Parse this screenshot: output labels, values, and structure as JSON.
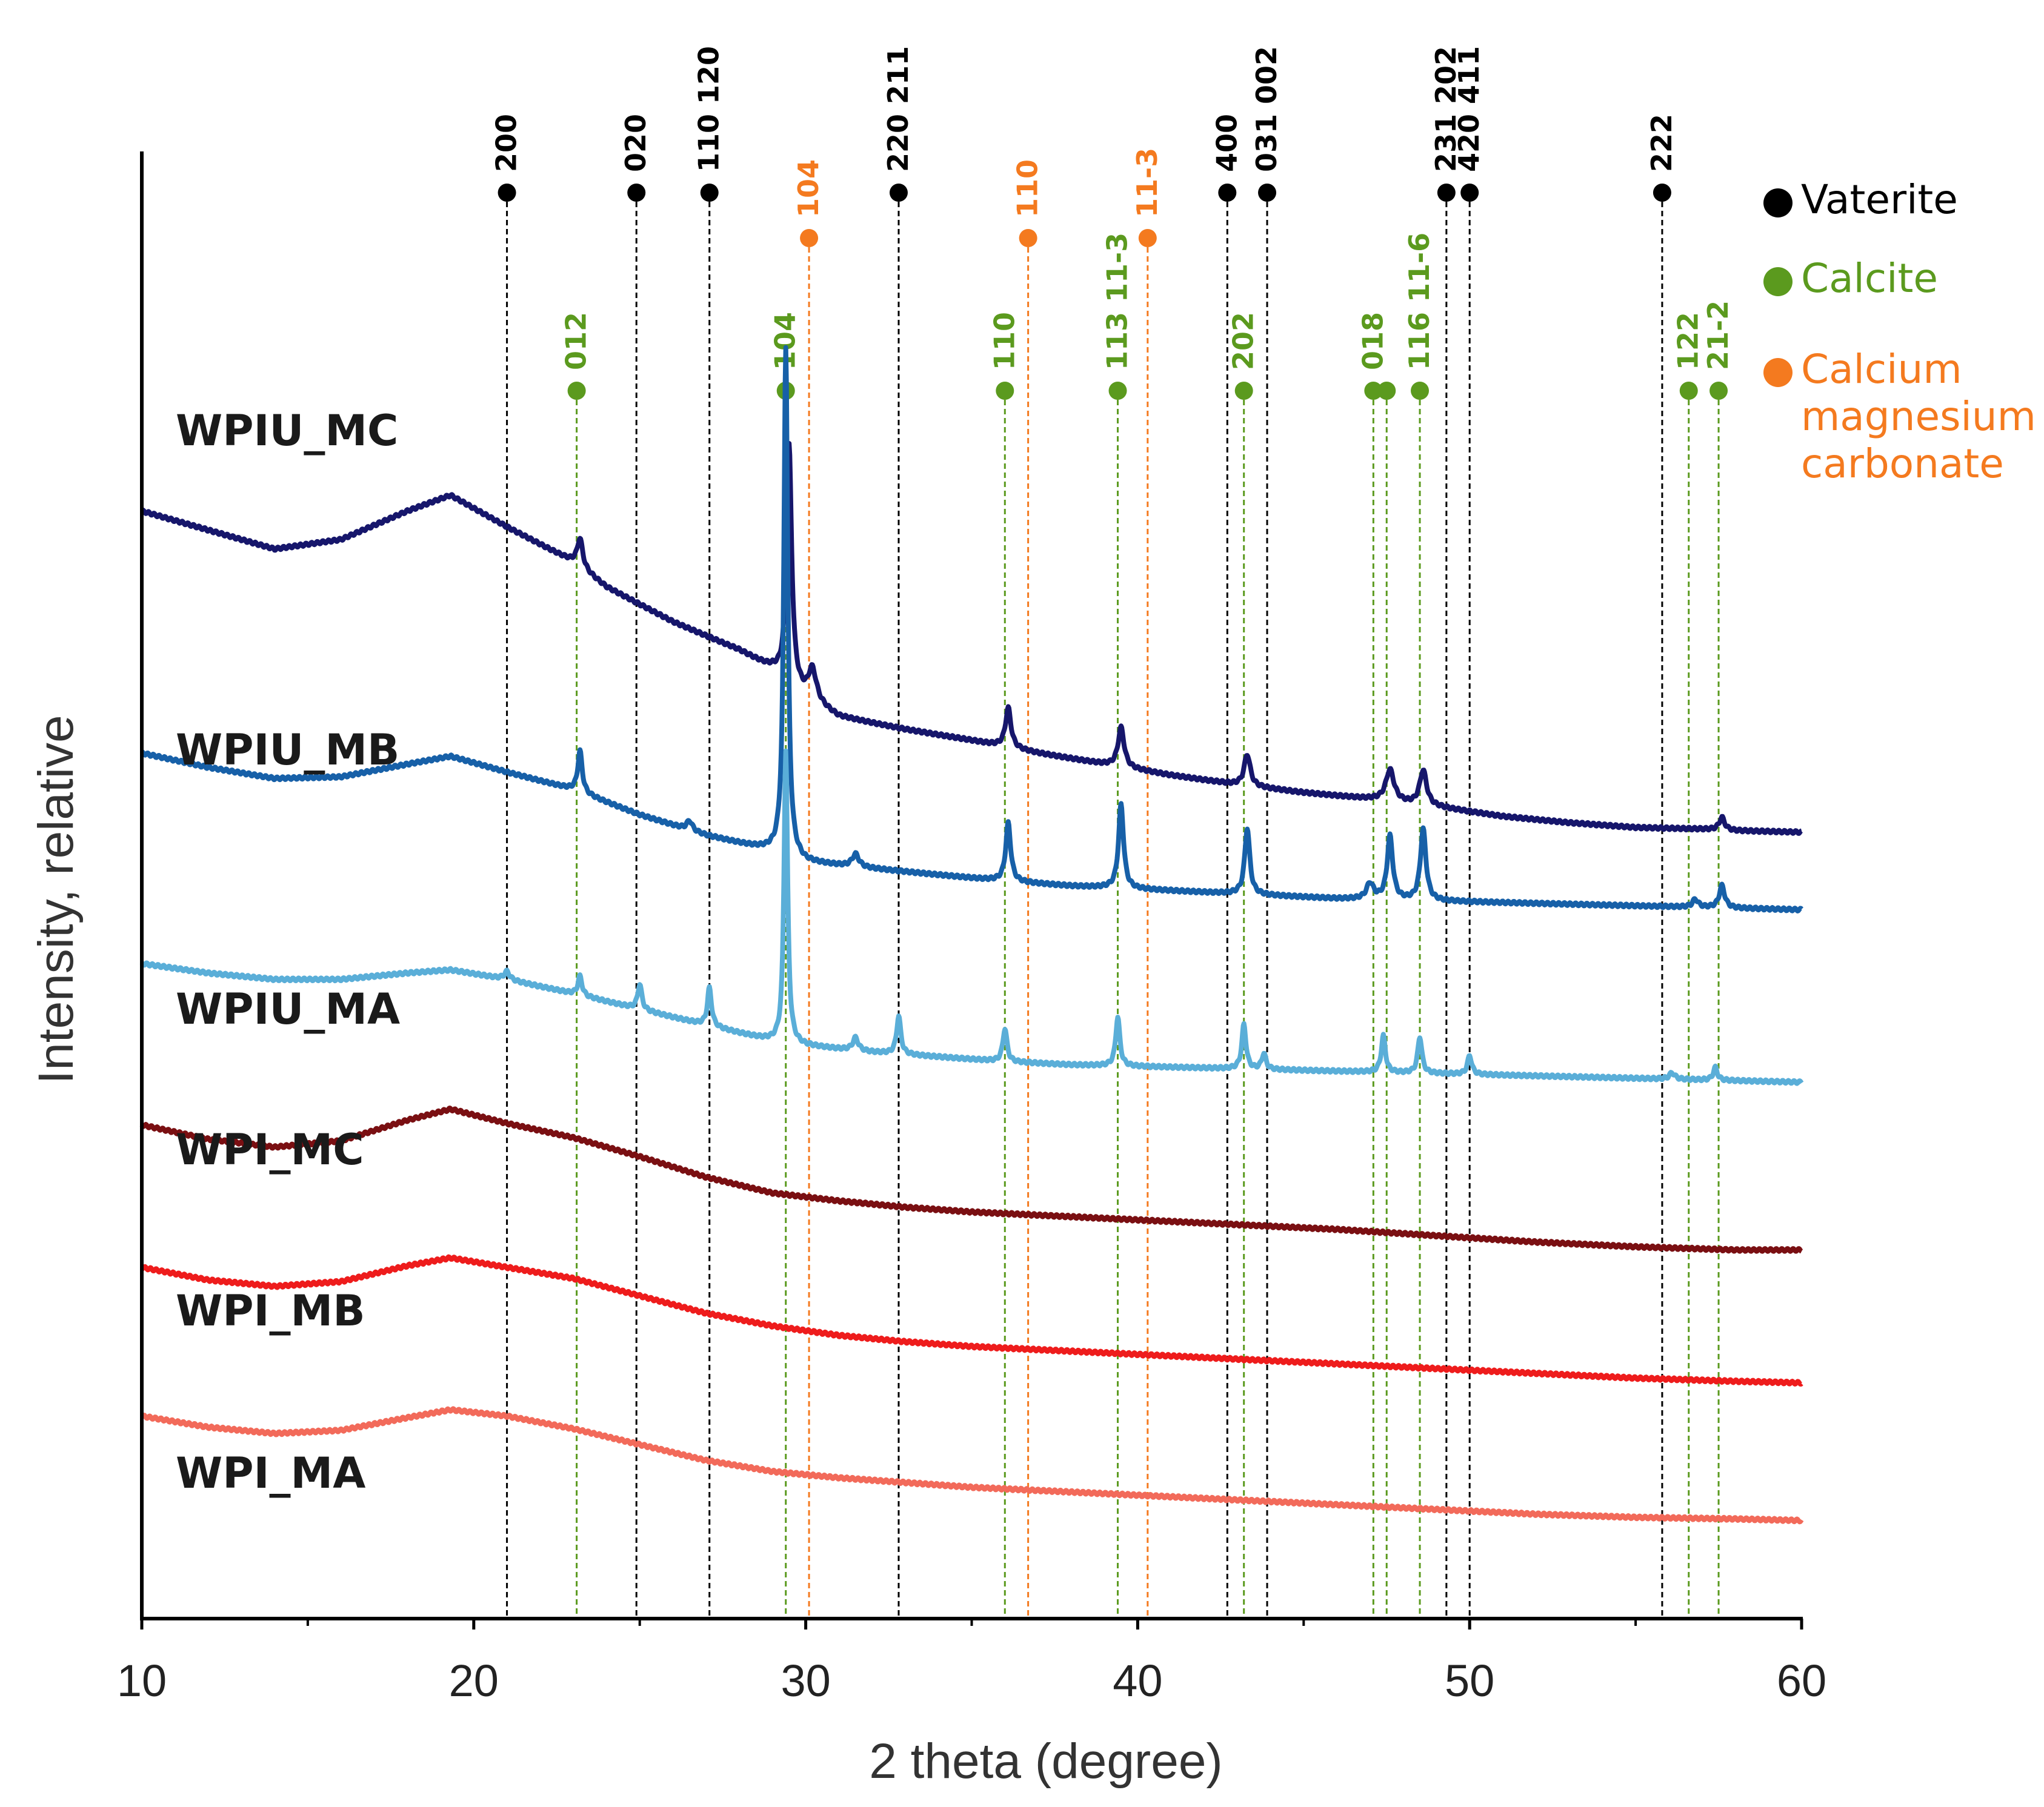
{
  "chart_data": {
    "type": "line",
    "title": "",
    "xlabel": "2 theta (degree)",
    "ylabel": "Intensity, relative",
    "xlim": [
      10,
      60
    ],
    "xticks": [
      10,
      20,
      30,
      40,
      50,
      60
    ],
    "grid": false,
    "legend_position": "top-right",
    "phases": [
      {
        "name": "Vaterite",
        "color": "#000000"
      },
      {
        "name": "Calcite",
        "color": "#5b9a1e"
      },
      {
        "name": "Calcium magnesium carbonate",
        "lines": [
          "Calcium",
          "magnesium",
          "carbonate"
        ],
        "color": "#f47a1f"
      }
    ],
    "series": [
      {
        "name": "WPIU_MC",
        "color": "#16166b",
        "points": [
          [
            10,
            0.7
          ],
          [
            12,
            0.688
          ],
          [
            14,
            0.676
          ],
          [
            16,
            0.682
          ],
          [
            18,
            0.7
          ],
          [
            19.3,
            0.71
          ],
          [
            21,
            0.69
          ],
          [
            23,
            0.668
          ],
          [
            24,
            0.652
          ],
          [
            26,
            0.63
          ],
          [
            28,
            0.612
          ],
          [
            29,
            0.6
          ],
          [
            30,
            0.582
          ],
          [
            31,
            0.57
          ],
          [
            33,
            0.562
          ],
          [
            35,
            0.555
          ],
          [
            37,
            0.547
          ],
          [
            39,
            0.54
          ],
          [
            41,
            0.533
          ],
          [
            43,
            0.527
          ],
          [
            45,
            0.522
          ],
          [
            47,
            0.518
          ],
          [
            49,
            0.513
          ],
          [
            51,
            0.507
          ],
          [
            53,
            0.503
          ],
          [
            55,
            0.5
          ],
          [
            57,
            0.499
          ],
          [
            58,
            0.498
          ],
          [
            60,
            0.497
          ]
        ],
        "peaks": [
          [
            23.2,
            0.018,
            0.2
          ],
          [
            29.5,
            0.15,
            0.18
          ],
          [
            30.2,
            0.02,
            0.3
          ],
          [
            36.1,
            0.025,
            0.2
          ],
          [
            39.5,
            0.025,
            0.22
          ],
          [
            43.3,
            0.02,
            0.22
          ],
          [
            47.6,
            0.02,
            0.3
          ],
          [
            48.6,
            0.022,
            0.25
          ],
          [
            57.6,
            0.008,
            0.2
          ]
        ]
      },
      {
        "name": "WPIU_MB",
        "color": "#1760a8",
        "points": [
          [
            10,
            0.547
          ],
          [
            12,
            0.538
          ],
          [
            14,
            0.531
          ],
          [
            16,
            0.532
          ],
          [
            18,
            0.54
          ],
          [
            19.3,
            0.545
          ],
          [
            21,
            0.535
          ],
          [
            23,
            0.524
          ],
          [
            25,
            0.508
          ],
          [
            27,
            0.495
          ],
          [
            29,
            0.485
          ],
          [
            30,
            0.478
          ],
          [
            32,
            0.474
          ],
          [
            34,
            0.47
          ],
          [
            36,
            0.466
          ],
          [
            38,
            0.463
          ],
          [
            40,
            0.461
          ],
          [
            42,
            0.459
          ],
          [
            44,
            0.457
          ],
          [
            46,
            0.455
          ],
          [
            48,
            0.454
          ],
          [
            50,
            0.453
          ],
          [
            52,
            0.452
          ],
          [
            54,
            0.451
          ],
          [
            56,
            0.45
          ],
          [
            58,
            0.449
          ],
          [
            60,
            0.448
          ]
        ],
        "peaks": [
          [
            23.2,
            0.026,
            0.16
          ],
          [
            26.5,
            0.006,
            0.2
          ],
          [
            29.4,
            0.322,
            0.14
          ],
          [
            31.5,
            0.008,
            0.25
          ],
          [
            36.1,
            0.037,
            0.18
          ],
          [
            39.5,
            0.053,
            0.18
          ],
          [
            43.3,
            0.042,
            0.18
          ],
          [
            47.0,
            0.01,
            0.25
          ],
          [
            47.6,
            0.04,
            0.2
          ],
          [
            48.6,
            0.045,
            0.2
          ],
          [
            56.8,
            0.005,
            0.2
          ],
          [
            57.6,
            0.014,
            0.2
          ]
        ]
      },
      {
        "name": "WPIU_MA",
        "color": "#5aaed8",
        "points": [
          [
            10,
            0.414
          ],
          [
            12,
            0.408
          ],
          [
            14,
            0.404
          ],
          [
            16,
            0.404
          ],
          [
            18,
            0.408
          ],
          [
            19.3,
            0.41
          ],
          [
            21,
            0.404
          ],
          [
            23,
            0.395
          ],
          [
            25,
            0.385
          ],
          [
            27,
            0.375
          ],
          [
            29,
            0.365
          ],
          [
            30,
            0.362
          ],
          [
            32,
            0.358
          ],
          [
            34,
            0.355
          ],
          [
            36,
            0.352
          ],
          [
            38,
            0.35
          ],
          [
            40,
            0.349
          ],
          [
            42,
            0.348
          ],
          [
            44,
            0.347
          ],
          [
            46,
            0.346
          ],
          [
            48,
            0.345
          ],
          [
            50,
            0.344
          ],
          [
            52,
            0.343
          ],
          [
            54,
            0.342
          ],
          [
            56,
            0.341
          ],
          [
            58,
            0.34
          ],
          [
            60,
            0.339
          ]
        ],
        "peaks": [
          [
            21.0,
            0.005,
            0.2
          ],
          [
            23.2,
            0.012,
            0.15
          ],
          [
            25.0,
            0.016,
            0.15
          ],
          [
            27.1,
            0.024,
            0.15
          ],
          [
            29.4,
            0.185,
            0.13
          ],
          [
            31.5,
            0.008,
            0.2
          ],
          [
            32.8,
            0.024,
            0.15
          ],
          [
            36.0,
            0.021,
            0.15
          ],
          [
            39.4,
            0.031,
            0.15
          ],
          [
            43.2,
            0.028,
            0.15
          ],
          [
            43.8,
            0.01,
            0.15
          ],
          [
            47.4,
            0.023,
            0.15
          ],
          [
            48.5,
            0.023,
            0.15
          ],
          [
            50.0,
            0.012,
            0.15
          ],
          [
            56.1,
            0.004,
            0.2
          ],
          [
            57.4,
            0.008,
            0.15
          ]
        ]
      },
      {
        "name": "WPI_MC",
        "color": "#7a0f12",
        "points": [
          [
            10,
            0.312
          ],
          [
            12,
            0.303
          ],
          [
            14,
            0.298
          ],
          [
            16,
            0.302
          ],
          [
            18,
            0.315
          ],
          [
            19.3,
            0.322
          ],
          [
            21,
            0.313
          ],
          [
            23,
            0.304
          ],
          [
            25,
            0.292
          ],
          [
            27,
            0.279
          ],
          [
            29,
            0.269
          ],
          [
            31,
            0.264
          ],
          [
            33,
            0.26
          ],
          [
            35,
            0.257
          ],
          [
            37,
            0.255
          ],
          [
            40,
            0.252
          ],
          [
            43,
            0.249
          ],
          [
            46,
            0.246
          ],
          [
            49,
            0.242
          ],
          [
            52,
            0.238
          ],
          [
            55,
            0.235
          ],
          [
            58,
            0.233
          ],
          [
            60,
            0.233
          ]
        ],
        "peaks": []
      },
      {
        "name": "WPI_MB",
        "color": "#ee1c1c",
        "points": [
          [
            10,
            0.222
          ],
          [
            12,
            0.214
          ],
          [
            14,
            0.21
          ],
          [
            16,
            0.213
          ],
          [
            18,
            0.223
          ],
          [
            19.3,
            0.228
          ],
          [
            21,
            0.222
          ],
          [
            23,
            0.215
          ],
          [
            25,
            0.204
          ],
          [
            27,
            0.193
          ],
          [
            29,
            0.185
          ],
          [
            31,
            0.179
          ],
          [
            33,
            0.175
          ],
          [
            35,
            0.172
          ],
          [
            37,
            0.17
          ],
          [
            40,
            0.167
          ],
          [
            43,
            0.164
          ],
          [
            46,
            0.161
          ],
          [
            49,
            0.158
          ],
          [
            52,
            0.155
          ],
          [
            55,
            0.152
          ],
          [
            58,
            0.15
          ],
          [
            60,
            0.149
          ]
        ],
        "peaks": []
      },
      {
        "name": "WPI_MA",
        "color": "#f26a5a",
        "points": [
          [
            10,
            0.128
          ],
          [
            12,
            0.121
          ],
          [
            14,
            0.117
          ],
          [
            16,
            0.119
          ],
          [
            18,
            0.127
          ],
          [
            19.3,
            0.132
          ],
          [
            21,
            0.128
          ],
          [
            23,
            0.12
          ],
          [
            25,
            0.11
          ],
          [
            27,
            0.1
          ],
          [
            29,
            0.093
          ],
          [
            31,
            0.089
          ],
          [
            33,
            0.086
          ],
          [
            35,
            0.083
          ],
          [
            37,
            0.081
          ],
          [
            40,
            0.078
          ],
          [
            43,
            0.075
          ],
          [
            46,
            0.072
          ],
          [
            49,
            0.069
          ],
          [
            52,
            0.066
          ],
          [
            55,
            0.064
          ],
          [
            58,
            0.063
          ],
          [
            60,
            0.062
          ]
        ],
        "peaks": []
      }
    ],
    "reference_lines": [
      {
        "phase": "Vaterite",
        "x": 21.0,
        "label": "200",
        "level": 1
      },
      {
        "phase": "Vaterite",
        "x": 24.9,
        "label": "020",
        "level": 1
      },
      {
        "phase": "Vaterite",
        "x": 27.1,
        "label": "110 120",
        "level": 1
      },
      {
        "phase": "Vaterite",
        "x": 32.8,
        "label": "220 211",
        "level": 1
      },
      {
        "phase": "Vaterite",
        "x": 42.7,
        "label": "400",
        "level": 1
      },
      {
        "phase": "Vaterite",
        "x": 43.9,
        "label": "031 002",
        "level": 1
      },
      {
        "phase": "Vaterite",
        "x": 49.3,
        "label": "231 202",
        "level": 1
      },
      {
        "phase": "Vaterite",
        "x": 50.0,
        "label": "420 411",
        "level": 1
      },
      {
        "phase": "Vaterite",
        "x": 55.8,
        "label": "222",
        "level": 1
      },
      {
        "phase": "Calcium magnesium carbonate",
        "x": 30.1,
        "label": "104",
        "level": 2
      },
      {
        "phase": "Calcium magnesium carbonate",
        "x": 36.7,
        "label": "110",
        "level": 2
      },
      {
        "phase": "Calcium magnesium carbonate",
        "x": 40.3,
        "label": "11-3",
        "level": 2
      },
      {
        "phase": "Calcite",
        "x": 23.1,
        "label": "012",
        "level": 3
      },
      {
        "phase": "Calcite",
        "x": 29.4,
        "label": "104",
        "level": 3
      },
      {
        "phase": "Calcite",
        "x": 36.0,
        "label": "110",
        "level": 3
      },
      {
        "phase": "Calcite",
        "x": 39.4,
        "label": "113 11-3",
        "level": 3
      },
      {
        "phase": "Calcite",
        "x": 43.2,
        "label": "202",
        "level": 3
      },
      {
        "phase": "Calcite",
        "x": 47.1,
        "label": "018",
        "level": 3
      },
      {
        "phase": "Calcite",
        "x": 47.5,
        "label": "",
        "level": 3
      },
      {
        "phase": "Calcite",
        "x": 48.5,
        "label": "116 11-6",
        "level": 3
      },
      {
        "phase": "Calcite",
        "x": 56.6,
        "label": "122",
        "level": 3
      },
      {
        "phase": "Calcite",
        "x": 57.5,
        "label": "21-2",
        "level": 3
      }
    ]
  }
}
